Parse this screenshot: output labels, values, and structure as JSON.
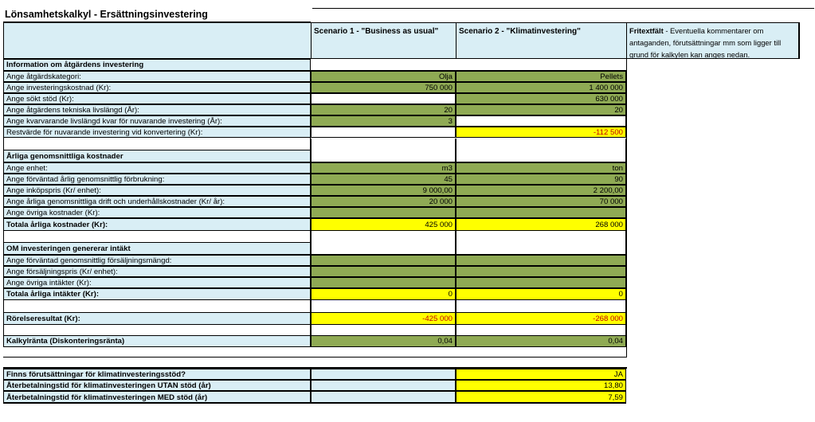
{
  "title": "Lönsamhetskalkyl - Ersättningsinvestering",
  "headers": {
    "scenario1": "Scenario 1 - \"Business as usual\"",
    "scenario2": "Scenario 2 - \"Klimatinvestering\"",
    "free_text_bold": "Fritextfält",
    "free_text_rest": " - Eventuella kommentarer om antaganden, förutsättningar mm som ligger till grund för kalkylen kan anges nedan."
  },
  "sections": {
    "info": "Information om åtgärdens investering",
    "costs": "Årliga genomsnittliga kostnader",
    "income": "OM investeringen genererar intäkt"
  },
  "rows": {
    "kategori": {
      "label": "Ange åtgärdskategori:",
      "s1": "Olja",
      "s2": "Pellets"
    },
    "investeringskostnad": {
      "label": "Ange investeringskostnad (Kr):",
      "s1": "750 000",
      "s2": "1 400 000"
    },
    "stod": {
      "label": "Ange sökt stöd (Kr):",
      "s1": "",
      "s2": "630 000"
    },
    "livslangd": {
      "label": "Ange åtgärdens tekniska livslängd (År):",
      "s1": "20",
      "s2": "20"
    },
    "kvarvarande": {
      "label": "Ange kvarvarande livslängd kvar för nuvarande investering (År):",
      "s1": "3",
      "s2": ""
    },
    "restvarde": {
      "label": "Restvärde för nuvarande investering vid konvertering (Kr):",
      "s1": "",
      "s2": "-112 500"
    },
    "enhet": {
      "label": "Ange enhet:",
      "s1": "m3",
      "s2": "ton"
    },
    "forbrukning": {
      "label": "Ange förväntad årlig genomsnittlig förbrukning:",
      "s1": "45",
      "s2": "90"
    },
    "inkopspris": {
      "label": "Ange inköpspris (Kr/ enhet):",
      "s1": "9 000,00",
      "s2": "2 200,00"
    },
    "drift": {
      "label": "Ange årliga genomsnittliga drift och underhållskostnader (Kr/ år):",
      "s1": "20 000",
      "s2": "70 000"
    },
    "ovriga_kostnader": {
      "label": "Ange övriga kostnader (Kr):",
      "s1": "",
      "s2": ""
    },
    "totala_kostnader": {
      "label": "Totala årliga kostnader (Kr):",
      "s1": "425 000",
      "s2": "268 000"
    },
    "forsaljningsmangd": {
      "label": "Ange förväntad genomsnittlig försäljningsmängd:",
      "s1": "",
      "s2": ""
    },
    "forsaljningspris": {
      "label": "Ange försäljningspris (Kr/ enhet):",
      "s1": "",
      "s2": ""
    },
    "ovriga_intakter": {
      "label": "Ange övriga intäkter (Kr):",
      "s1": "",
      "s2": ""
    },
    "totala_intakter": {
      "label": "Totala årliga intäkter (Kr):",
      "s1": "0",
      "s2": "0"
    },
    "rorelseresultat": {
      "label": "Rörelseresultat (Kr):",
      "s1": "-425 000",
      "s2": "-268 000"
    },
    "kalkylranta": {
      "label": "Kalkylränta (Diskonteringsränta)",
      "s1": "0,04",
      "s2": "0,04"
    },
    "forutsattningar": {
      "label": "Finns förutsättningar för klimatinvesteringsstöd?",
      "s1": "",
      "s2": "JA"
    },
    "aterbet_utan": {
      "label": "Återbetalningstid för klimatinvesteringen UTAN stöd (år)",
      "s1": "",
      "s2": "13,80"
    },
    "aterbet_med": {
      "label": "Återbetalningstid för klimatinvesteringen MED stöd (år)",
      "s1": "",
      "s2": "7,59"
    }
  },
  "colors": {
    "header_blue": "#d9eef5",
    "input_green": "#8faa54",
    "result_yellow": "#ffff00",
    "negative_red": "#c00000"
  }
}
